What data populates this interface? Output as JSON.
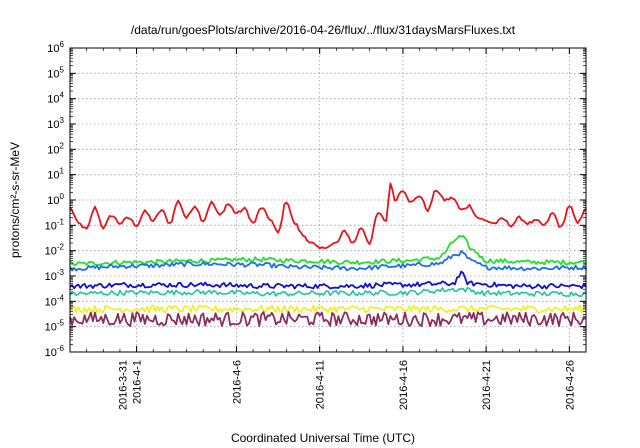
{
  "chart_data": {
    "type": "line",
    "title": "/data/run/goesPlots/archive/2016-04-26/flux/../flux/31daysMarsFluxes.txt",
    "xlabel": "Coordinated Universal Time (UTC)",
    "ylabel": "protons/cm²-s-sr-MeV",
    "y_scale": "log",
    "grid": true,
    "xlim": [
      "2016-03-27",
      "2016-04-27"
    ],
    "ylim": [
      1e-06,
      1000000.0
    ],
    "y_ticks": [
      {
        "value": 1e-06,
        "base": "10",
        "exp": "-6"
      },
      {
        "value": 1e-05,
        "base": "10",
        "exp": "-5"
      },
      {
        "value": 0.0001,
        "base": "10",
        "exp": "-4"
      },
      {
        "value": 0.001,
        "base": "10",
        "exp": "-3"
      },
      {
        "value": 0.01,
        "base": "10",
        "exp": "-2"
      },
      {
        "value": 0.1,
        "base": "10",
        "exp": "-1"
      },
      {
        "value": 1.0,
        "base": "10",
        "exp": "0"
      },
      {
        "value": 10.0,
        "base": "10",
        "exp": "1"
      },
      {
        "value": 100.0,
        "base": "10",
        "exp": "2"
      },
      {
        "value": 1000.0,
        "base": "10",
        "exp": "3"
      },
      {
        "value": 10000.0,
        "base": "10",
        "exp": "4"
      },
      {
        "value": 100000.0,
        "base": "10",
        "exp": "5"
      },
      {
        "value": 1000000.0,
        "base": "10",
        "exp": "6"
      }
    ],
    "x_ticks": [
      {
        "date": "2016-03-31",
        "lines": [
          "2016-3-31",
          "2016-4-1"
        ]
      },
      {
        "date": "2016-04-06",
        "lines": [
          "2016-4-6"
        ]
      },
      {
        "date": "2016-04-11",
        "lines": [
          "2016-4-11"
        ]
      },
      {
        "date": "2016-04-16",
        "lines": [
          "2016-4-16"
        ]
      },
      {
        "date": "2016-04-21",
        "lines": [
          "2016-4-21"
        ]
      },
      {
        "date": "2016-04-26",
        "lines": [
          "2016-4-26"
        ]
      }
    ],
    "series": [
      {
        "color": "#e8141b",
        "values": [
          [
            "2016-03-27T00:00",
            0.5
          ],
          [
            "2016-03-27T12:00",
            0.12
          ],
          [
            "2016-03-28T00:00",
            0.07
          ],
          [
            "2016-03-28T12:00",
            0.5
          ],
          [
            "2016-03-29T00:00",
            0.08
          ],
          [
            "2016-03-29T12:00",
            0.25
          ],
          [
            "2016-03-30T00:00",
            0.12
          ],
          [
            "2016-03-30T12:00",
            0.2
          ],
          [
            "2016-03-31T00:00",
            0.1
          ],
          [
            "2016-03-31T12:00",
            0.35
          ],
          [
            "2016-04-01T00:00",
            0.15
          ],
          [
            "2016-04-01T12:00",
            0.4
          ],
          [
            "2016-04-02T00:00",
            0.12
          ],
          [
            "2016-04-02T12:00",
            0.9
          ],
          [
            "2016-04-03T00:00",
            0.2
          ],
          [
            "2016-04-03T12:00",
            0.6
          ],
          [
            "2016-04-04T00:00",
            0.15
          ],
          [
            "2016-04-04T12:00",
            0.8
          ],
          [
            "2016-04-05T00:00",
            0.25
          ],
          [
            "2016-04-05T12:00",
            0.7
          ],
          [
            "2016-04-06T00:00",
            0.3
          ],
          [
            "2016-04-06T12:00",
            0.45
          ],
          [
            "2016-04-07T00:00",
            0.12
          ],
          [
            "2016-04-07T12:00",
            0.5
          ],
          [
            "2016-04-08T00:00",
            0.18
          ],
          [
            "2016-04-08T12:00",
            0.05
          ],
          [
            "2016-04-09T00:00",
            0.9
          ],
          [
            "2016-04-09T12:00",
            0.12
          ],
          [
            "2016-04-10T00:00",
            0.04
          ],
          [
            "2016-04-10T12:00",
            0.02
          ],
          [
            "2016-04-11T00:00",
            0.012
          ],
          [
            "2016-04-11T12:00",
            0.015
          ],
          [
            "2016-04-12T00:00",
            0.02
          ],
          [
            "2016-04-12T12:00",
            0.06
          ],
          [
            "2016-04-13T00:00",
            0.02
          ],
          [
            "2016-04-13T12:00",
            0.08
          ],
          [
            "2016-04-14T00:00",
            0.02
          ],
          [
            "2016-04-14T12:00",
            0.3
          ],
          [
            "2016-04-15T00:00",
            0.15
          ],
          [
            "2016-04-15T06:00",
            5.0
          ],
          [
            "2016-04-15T12:00",
            1.0
          ],
          [
            "2016-04-16T00:00",
            2.5
          ],
          [
            "2016-04-16T12:00",
            0.8
          ],
          [
            "2016-04-17T00:00",
            1.5
          ],
          [
            "2016-04-17T12:00",
            0.4
          ],
          [
            "2016-04-18T00:00",
            2.5
          ],
          [
            "2016-04-18T12:00",
            1.0
          ],
          [
            "2016-04-19T00:00",
            1.2
          ],
          [
            "2016-04-19T12:00",
            0.4
          ],
          [
            "2016-04-20T00:00",
            0.6
          ],
          [
            "2016-04-20T12:00",
            0.2
          ],
          [
            "2016-04-21T00:00",
            0.15
          ],
          [
            "2016-04-21T12:00",
            0.12
          ],
          [
            "2016-04-22T00:00",
            0.18
          ],
          [
            "2016-04-22T12:00",
            0.1
          ],
          [
            "2016-04-23T00:00",
            0.2
          ],
          [
            "2016-04-23T12:00",
            0.12
          ],
          [
            "2016-04-24T00:00",
            0.15
          ],
          [
            "2016-04-24T12:00",
            0.1
          ],
          [
            "2016-04-25T00:00",
            0.3
          ],
          [
            "2016-04-25T12:00",
            0.08
          ],
          [
            "2016-04-26T00:00",
            0.6
          ],
          [
            "2016-04-26T12:00",
            0.12
          ],
          [
            "2016-04-27T00:00",
            0.5
          ]
        ]
      },
      {
        "color": "#22e02a",
        "values": [
          [
            "2016-03-27T00:00",
            0.003
          ],
          [
            "2016-03-31T00:00",
            0.0035
          ],
          [
            "2016-04-04T00:00",
            0.004
          ],
          [
            "2016-04-07T00:00",
            0.0045
          ],
          [
            "2016-04-10T00:00",
            0.004
          ],
          [
            "2016-04-13T00:00",
            0.0035
          ],
          [
            "2016-04-16T00:00",
            0.004
          ],
          [
            "2016-04-18T00:00",
            0.005
          ],
          [
            "2016-04-19T12:00",
            0.035
          ],
          [
            "2016-04-20T06:00",
            0.01
          ],
          [
            "2016-04-21T00:00",
            0.004
          ],
          [
            "2016-04-24T00:00",
            0.0035
          ],
          [
            "2016-04-27T00:00",
            0.0035
          ]
        ]
      },
      {
        "color": "#1f6fe8",
        "values": [
          [
            "2016-03-27T00:00",
            0.002
          ],
          [
            "2016-03-31T00:00",
            0.0025
          ],
          [
            "2016-04-04T00:00",
            0.003
          ],
          [
            "2016-04-07T00:00",
            0.0028
          ],
          [
            "2016-04-10T00:00",
            0.0022
          ],
          [
            "2016-04-13T00:00",
            0.002
          ],
          [
            "2016-04-16T00:00",
            0.0025
          ],
          [
            "2016-04-18T00:00",
            0.003
          ],
          [
            "2016-04-19T12:00",
            0.008
          ],
          [
            "2016-04-20T06:00",
            0.0035
          ],
          [
            "2016-04-21T00:00",
            0.0022
          ],
          [
            "2016-04-24T00:00",
            0.002
          ],
          [
            "2016-04-27T00:00",
            0.0022
          ]
        ]
      },
      {
        "color": "#1010d0",
        "values": [
          [
            "2016-03-27T00:00",
            0.0004
          ],
          [
            "2016-03-31T00:00",
            0.00045
          ],
          [
            "2016-04-04T00:00",
            0.00045
          ],
          [
            "2016-04-08T00:00",
            0.0004
          ],
          [
            "2016-04-12T00:00",
            0.0004
          ],
          [
            "2016-04-16T00:00",
            0.00045
          ],
          [
            "2016-04-19T00:00",
            0.0005
          ],
          [
            "2016-04-19T12:00",
            0.0012
          ],
          [
            "2016-04-20T00:00",
            0.0005
          ],
          [
            "2016-04-23T00:00",
            0.0004
          ],
          [
            "2016-04-27T00:00",
            0.0004
          ]
        ]
      },
      {
        "color": "#21c59a",
        "values": [
          [
            "2016-03-27T00:00",
            0.0002
          ],
          [
            "2016-03-31T00:00",
            0.00022
          ],
          [
            "2016-04-04T00:00",
            0.00023
          ],
          [
            "2016-04-08T00:00",
            0.0002
          ],
          [
            "2016-04-12T00:00",
            0.00021
          ],
          [
            "2016-04-16T00:00",
            0.00022
          ],
          [
            "2016-04-19T12:00",
            0.0003
          ],
          [
            "2016-04-21T00:00",
            0.00021
          ],
          [
            "2016-04-24T00:00",
            0.0002
          ],
          [
            "2016-04-27T00:00",
            0.0002
          ]
        ]
      },
      {
        "color": "#f2ee1a",
        "values": [
          [
            "2016-03-27T00:00",
            5e-05
          ],
          [
            "2016-04-01T00:00",
            5e-05
          ],
          [
            "2016-04-06T00:00",
            5e-05
          ],
          [
            "2016-04-11T00:00",
            5e-05
          ],
          [
            "2016-04-16T00:00",
            5e-05
          ],
          [
            "2016-04-21T00:00",
            5e-05
          ],
          [
            "2016-04-27T00:00",
            5e-05
          ]
        ]
      },
      {
        "color": "#8b2e5e",
        "values": [
          [
            "2016-03-27T00:00",
            2e-05
          ],
          [
            "2016-04-01T00:00",
            2e-05
          ],
          [
            "2016-04-06T00:00",
            2e-05
          ],
          [
            "2016-04-11T00:00",
            2e-05
          ],
          [
            "2016-04-16T00:00",
            2e-05
          ],
          [
            "2016-04-21T00:00",
            2e-05
          ],
          [
            "2016-04-27T00:00",
            2e-05
          ]
        ]
      }
    ]
  }
}
